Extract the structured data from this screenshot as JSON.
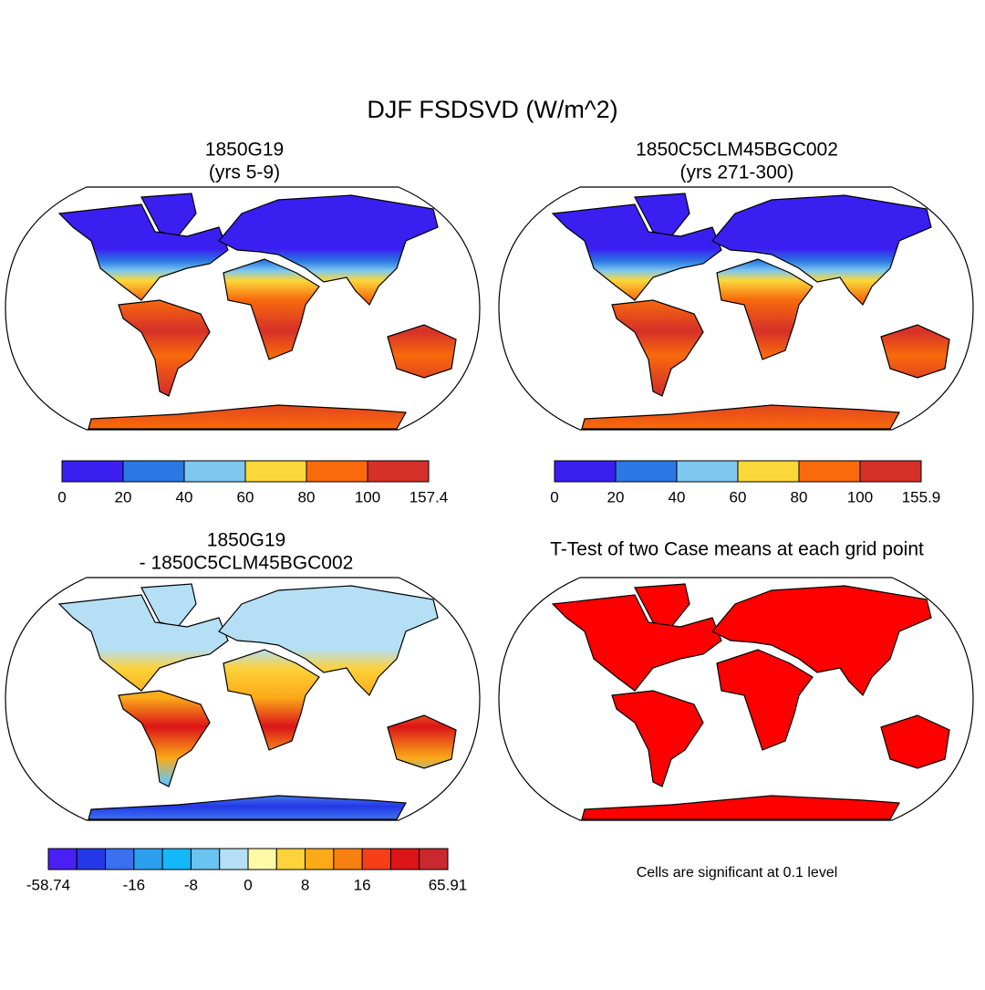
{
  "title": "DJF FSDSVD (W/m^2)",
  "panels": [
    {
      "title": [
        "1850G19",
        "(yrs 5-9)"
      ],
      "colorbar": {
        "colors": [
          "#3a1ff0",
          "#2b78e4",
          "#7ec8f0",
          "#fbd83a",
          "#f86a0c",
          "#d6302a"
        ],
        "labels": [
          "0",
          "20",
          "40",
          "60",
          "80",
          "100",
          "157.4"
        ]
      }
    },
    {
      "title": [
        "1850C5CLM45BGC002",
        "(yrs 271-300)"
      ],
      "colorbar": {
        "colors": [
          "#3a1ff0",
          "#2b78e4",
          "#7ec8f0",
          "#fbd83a",
          "#f86a0c",
          "#d6302a"
        ],
        "labels": [
          "0",
          "20",
          "40",
          "60",
          "80",
          "100",
          "155.9"
        ]
      }
    },
    {
      "title": [
        "1850G19",
        "- 1850C5CLM45BGC002"
      ],
      "colorbar": {
        "colors": [
          "#4a1ff5",
          "#2438e8",
          "#3a6ff0",
          "#2ba0f0",
          "#12b8f8",
          "#6ac4ef",
          "#b4dff5",
          "#fff9a8",
          "#fdd23a",
          "#fbaa18",
          "#f88010",
          "#f83e18",
          "#dc1418",
          "#c8282e"
        ],
        "labels": [
          "-58.74",
          null,
          null,
          "-16",
          null,
          "-8",
          null,
          "0",
          null,
          "8",
          null,
          "16",
          null,
          null,
          "65.91"
        ]
      }
    },
    {
      "title": [
        "T-Test of two Case means at each grid point"
      ],
      "note": "Cells are significant at 0.1 level"
    }
  ]
}
